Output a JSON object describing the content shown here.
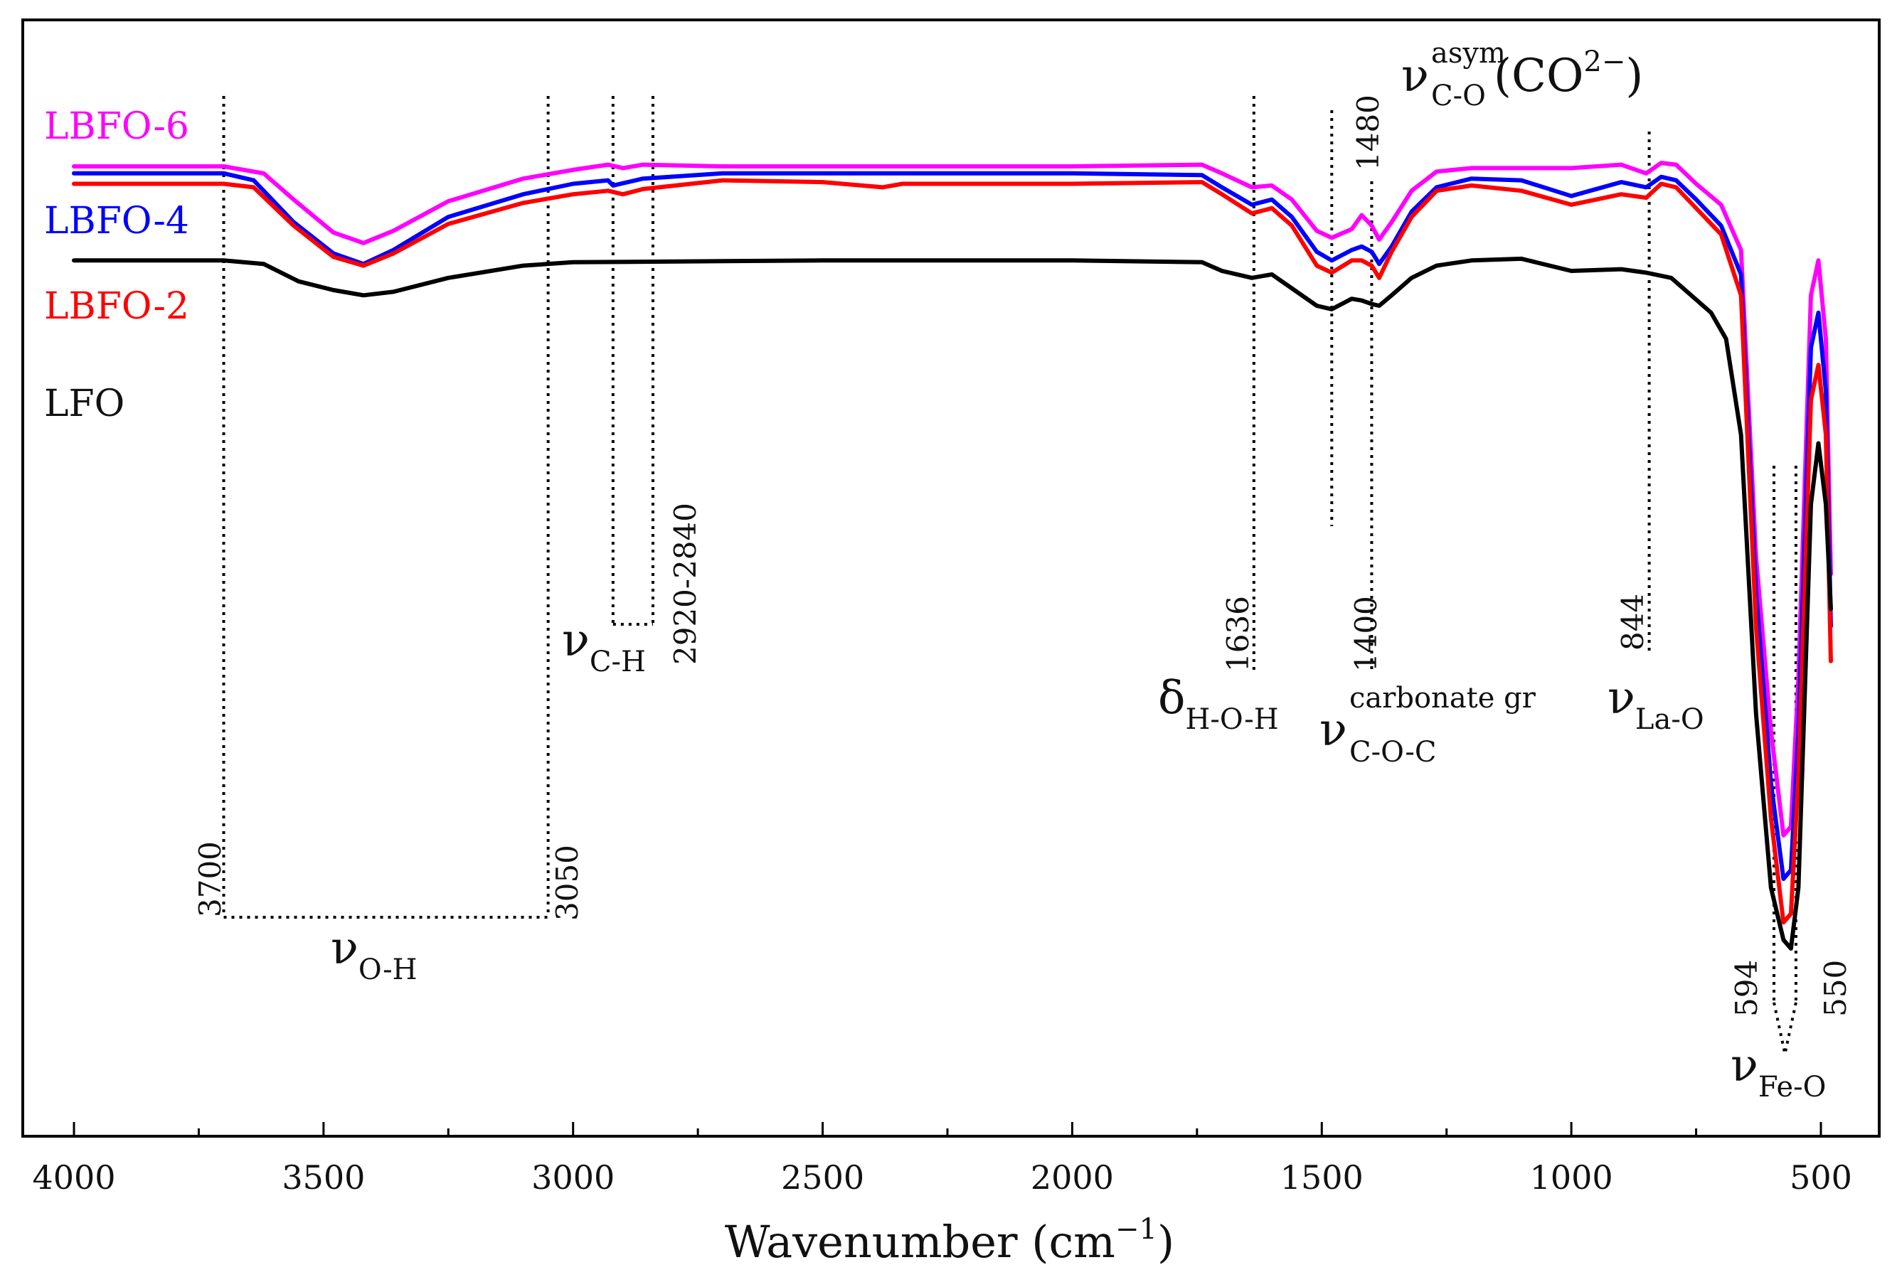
{
  "chart_data": {
    "type": "line",
    "title": "",
    "xlabel": "Wavenumber (cm",
    "xlabel_sup": "−1",
    "xlabel_end": ")",
    "ylabel": "",
    "xlim": [
      4000,
      450
    ],
    "x_reversed": true,
    "y_axis_visible": false,
    "grid": false,
    "x_ticks": [
      "4000",
      "3500",
      "3000",
      "2500",
      "2000",
      "1500",
      "1000",
      "500"
    ],
    "series": [
      {
        "name": "LBFO-6",
        "color": "#ff00ff",
        "points": [
          [
            4000,
            0.54
          ],
          [
            3700,
            0.54
          ],
          [
            3620,
            0.5
          ],
          [
            3560,
            0.35
          ],
          [
            3480,
            0.16
          ],
          [
            3420,
            0.1
          ],
          [
            3360,
            0.17
          ],
          [
            3250,
            0.34
          ],
          [
            3100,
            0.47
          ],
          [
            3000,
            0.52
          ],
          [
            2930,
            0.55
          ],
          [
            2900,
            0.53
          ],
          [
            2860,
            0.55
          ],
          [
            2700,
            0.54
          ],
          [
            2000,
            0.54
          ],
          [
            1740,
            0.55
          ],
          [
            1700,
            0.5
          ],
          [
            1640,
            0.42
          ],
          [
            1600,
            0.43
          ],
          [
            1560,
            0.35
          ],
          [
            1510,
            0.17
          ],
          [
            1480,
            0.13
          ],
          [
            1440,
            0.18
          ],
          [
            1420,
            0.26
          ],
          [
            1400,
            0.2
          ],
          [
            1385,
            0.12
          ],
          [
            1360,
            0.22
          ],
          [
            1320,
            0.4
          ],
          [
            1270,
            0.51
          ],
          [
            1200,
            0.53
          ],
          [
            1100,
            0.53
          ],
          [
            1000,
            0.53
          ],
          [
            900,
            0.55
          ],
          [
            850,
            0.5
          ],
          [
            820,
            0.56
          ],
          [
            790,
            0.55
          ],
          [
            750,
            0.44
          ],
          [
            700,
            0.32
          ],
          [
            660,
            0.06
          ],
          [
            630,
            -1.7
          ],
          [
            600,
            -2.7
          ],
          [
            575,
            -3.3
          ],
          [
            560,
            -3.25
          ],
          [
            545,
            -2.4
          ],
          [
            520,
            -0.2
          ],
          [
            505,
            0.0
          ],
          [
            490,
            -0.45
          ],
          [
            480,
            -1.8
          ]
        ]
      },
      {
        "name": "LBFO-4",
        "color": "#0000ff",
        "points": [
          [
            4000,
            0.5
          ],
          [
            3700,
            0.5
          ],
          [
            3640,
            0.46
          ],
          [
            3560,
            0.22
          ],
          [
            3480,
            0.04
          ],
          [
            3420,
            -0.02
          ],
          [
            3360,
            0.06
          ],
          [
            3250,
            0.25
          ],
          [
            3100,
            0.38
          ],
          [
            3000,
            0.44
          ],
          [
            2930,
            0.46
          ],
          [
            2920,
            0.43
          ],
          [
            2860,
            0.47
          ],
          [
            2700,
            0.5
          ],
          [
            2000,
            0.5
          ],
          [
            1740,
            0.49
          ],
          [
            1700,
            0.42
          ],
          [
            1640,
            0.32
          ],
          [
            1600,
            0.35
          ],
          [
            1560,
            0.25
          ],
          [
            1510,
            0.05
          ],
          [
            1480,
            0.0
          ],
          [
            1440,
            0.06
          ],
          [
            1420,
            0.08
          ],
          [
            1400,
            0.05
          ],
          [
            1385,
            -0.02
          ],
          [
            1360,
            0.08
          ],
          [
            1320,
            0.28
          ],
          [
            1270,
            0.42
          ],
          [
            1200,
            0.47
          ],
          [
            1100,
            0.46
          ],
          [
            1000,
            0.37
          ],
          [
            900,
            0.45
          ],
          [
            850,
            0.42
          ],
          [
            820,
            0.48
          ],
          [
            790,
            0.46
          ],
          [
            750,
            0.35
          ],
          [
            700,
            0.2
          ],
          [
            660,
            -0.08
          ],
          [
            630,
            -1.9
          ],
          [
            600,
            -3.0
          ],
          [
            575,
            -3.55
          ],
          [
            560,
            -3.5
          ],
          [
            545,
            -2.7
          ],
          [
            520,
            -0.5
          ],
          [
            505,
            -0.3
          ],
          [
            490,
            -0.75
          ],
          [
            480,
            -2.1
          ]
        ]
      },
      {
        "name": "LBFO-2",
        "color": "#ff0000",
        "points": [
          [
            4000,
            0.44
          ],
          [
            3700,
            0.44
          ],
          [
            3640,
            0.42
          ],
          [
            3560,
            0.2
          ],
          [
            3480,
            0.02
          ],
          [
            3420,
            -0.03
          ],
          [
            3360,
            0.04
          ],
          [
            3250,
            0.21
          ],
          [
            3100,
            0.33
          ],
          [
            3000,
            0.38
          ],
          [
            2930,
            0.4
          ],
          [
            2900,
            0.38
          ],
          [
            2860,
            0.41
          ],
          [
            2700,
            0.46
          ],
          [
            2500,
            0.45
          ],
          [
            2380,
            0.42
          ],
          [
            2340,
            0.44
          ],
          [
            2000,
            0.44
          ],
          [
            1740,
            0.45
          ],
          [
            1700,
            0.38
          ],
          [
            1640,
            0.27
          ],
          [
            1600,
            0.3
          ],
          [
            1560,
            0.2
          ],
          [
            1510,
            -0.03
          ],
          [
            1480,
            -0.07
          ],
          [
            1440,
            0.0
          ],
          [
            1420,
            0.0
          ],
          [
            1400,
            -0.03
          ],
          [
            1385,
            -0.1
          ],
          [
            1360,
            0.05
          ],
          [
            1320,
            0.25
          ],
          [
            1270,
            0.4
          ],
          [
            1200,
            0.43
          ],
          [
            1100,
            0.4
          ],
          [
            1000,
            0.32
          ],
          [
            900,
            0.38
          ],
          [
            850,
            0.36
          ],
          [
            820,
            0.44
          ],
          [
            790,
            0.42
          ],
          [
            750,
            0.3
          ],
          [
            700,
            0.15
          ],
          [
            660,
            -0.2
          ],
          [
            630,
            -2.1
          ],
          [
            600,
            -3.2
          ],
          [
            575,
            -3.8
          ],
          [
            560,
            -3.75
          ],
          [
            545,
            -2.95
          ],
          [
            520,
            -0.8
          ],
          [
            505,
            -0.6
          ],
          [
            490,
            -1.0
          ],
          [
            480,
            -2.3
          ]
        ]
      },
      {
        "name": "LFO",
        "color": "#000000",
        "points": [
          [
            4000,
            0.0
          ],
          [
            3700,
            0.0
          ],
          [
            3620,
            -0.02
          ],
          [
            3550,
            -0.12
          ],
          [
            3480,
            -0.17
          ],
          [
            3420,
            -0.2
          ],
          [
            3360,
            -0.18
          ],
          [
            3250,
            -0.1
          ],
          [
            3100,
            -0.03
          ],
          [
            3000,
            -0.01
          ],
          [
            2500,
            0.0
          ],
          [
            2000,
            0.0
          ],
          [
            1740,
            -0.01
          ],
          [
            1700,
            -0.06
          ],
          [
            1640,
            -0.1
          ],
          [
            1600,
            -0.08
          ],
          [
            1560,
            -0.16
          ],
          [
            1510,
            -0.26
          ],
          [
            1480,
            -0.28
          ],
          [
            1440,
            -0.22
          ],
          [
            1420,
            -0.23
          ],
          [
            1400,
            -0.25
          ],
          [
            1385,
            -0.26
          ],
          [
            1360,
            -0.2
          ],
          [
            1320,
            -0.1
          ],
          [
            1270,
            -0.03
          ],
          [
            1200,
            0.0
          ],
          [
            1100,
            0.01
          ],
          [
            1000,
            -0.06
          ],
          [
            900,
            -0.05
          ],
          [
            850,
            -0.07
          ],
          [
            800,
            -0.1
          ],
          [
            760,
            -0.2
          ],
          [
            720,
            -0.3
          ],
          [
            690,
            -0.45
          ],
          [
            660,
            -1.0
          ],
          [
            630,
            -2.6
          ],
          [
            600,
            -3.6
          ],
          [
            575,
            -3.9
          ],
          [
            560,
            -3.95
          ],
          [
            545,
            -3.6
          ],
          [
            520,
            -1.4
          ],
          [
            505,
            -1.05
          ],
          [
            490,
            -1.4
          ],
          [
            480,
            -2.0
          ]
        ]
      }
    ],
    "peak_labels": [
      "3700",
      "3050",
      "2920-2840",
      "1636",
      "1480",
      "1400",
      "844",
      "594",
      "550"
    ],
    "band_labels": {
      "oh": {
        "sym": "ν",
        "sub": "O-H"
      },
      "ch": {
        "sym": "ν",
        "sub": "C-H"
      },
      "hoh": {
        "sym": "δ",
        "sub": "H-O-H"
      },
      "coc": {
        "sym": "ν",
        "sup": "carbonate gr",
        "sub": "C-O-C"
      },
      "co3": {
        "sym": "ν",
        "sup": "asym",
        "sub": "C-O",
        "tail": "(CO",
        "tail_sup": "2−",
        "tail_end": ")"
      },
      "lao": {
        "sym": "ν",
        "sub": "La-O"
      },
      "feo": {
        "sym": "ν",
        "sub": "Fe-O"
      }
    }
  }
}
